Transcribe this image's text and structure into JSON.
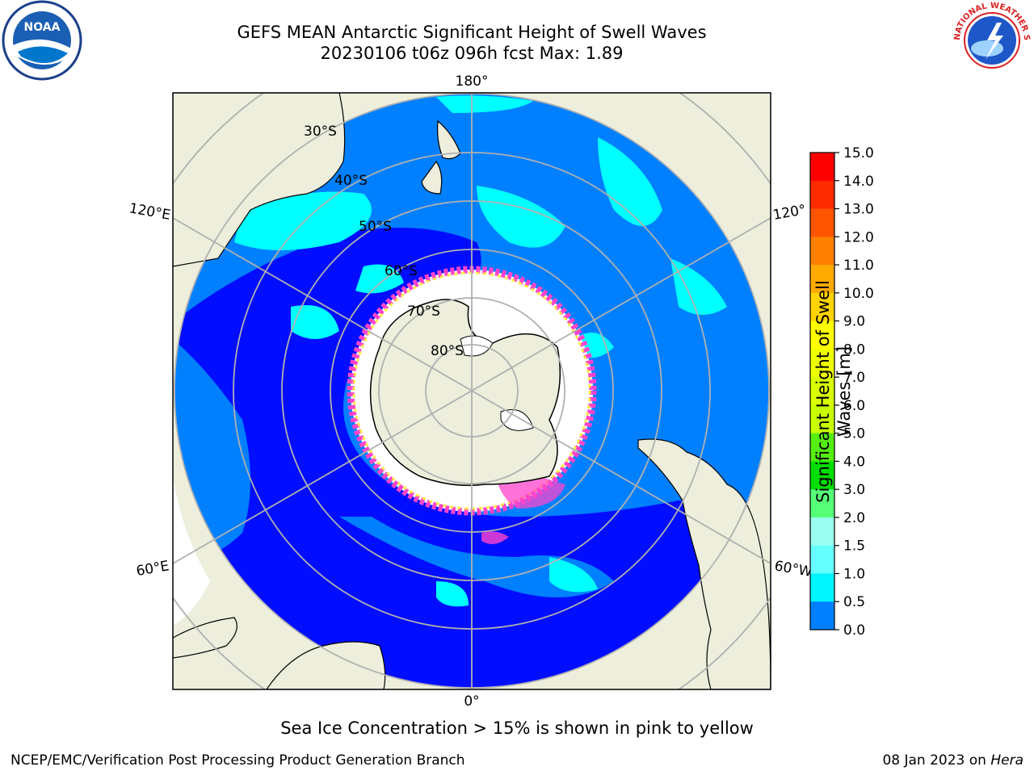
{
  "title": {
    "line1": "GEFS MEAN Antarctic Significant Height of Swell Waves",
    "line2": "20230106 t06z 096h fcst   Max: 1.89"
  },
  "map": {
    "projection": "south-polar-stereographic",
    "longitude_labels": [
      "180°",
      "120°E",
      "120°",
      "60°E",
      "60°W",
      "0°"
    ],
    "latitude_labels": [
      "30°S",
      "40°S",
      "50°S",
      "60°S",
      "70°S",
      "80°S"
    ],
    "colors": {
      "land": "#eeeedd",
      "sea_ice_mask": "#ffffff",
      "class_0_05": "#0000ff",
      "class_05_1": "#0080ff",
      "class_1_15": "#00ffff",
      "grid": "#b0b0b0",
      "ice_edge_pink": "#ff44cc",
      "ice_edge_yellow": "#ffee44"
    }
  },
  "colorbar": {
    "label": "Significant Height of Swell Waves [m]",
    "label_line1": "Significant Height of Swell",
    "label_line2": "Waves [m]",
    "ticks": [
      "15.0",
      "14.0",
      "13.0",
      "12.0",
      "11.0",
      "10.0",
      "9.0",
      "8.0",
      "7.0",
      "6.0",
      "5.0",
      "4.0",
      "3.0",
      "2.0",
      "1.5",
      "1.0",
      "0.5",
      "0.0"
    ],
    "colors": [
      "#ff0000",
      "#ff2a00",
      "#ff5500",
      "#ff8000",
      "#ffaa00",
      "#ffd400",
      "#ffff00",
      "#eeff00",
      "#d9ff00",
      "#c8ff00",
      "#55ee11",
      "#00dd00",
      "#55ff77",
      "#99ffee",
      "#66ffff",
      "#00f5ff",
      "#0080ff",
      "#0000ff"
    ]
  },
  "caption": "Sea Ice Concentration > 15% is shown in pink to yellow",
  "footer": {
    "left": "NCEP/EMC/Verification Post Processing Product Generation Branch",
    "right_date": "08 Jan 2023 on ",
    "right_machine": "Hera"
  },
  "logos": {
    "noaa_text": "NOAA",
    "nws_text": "NATIONAL WEATHER SERVICE"
  }
}
